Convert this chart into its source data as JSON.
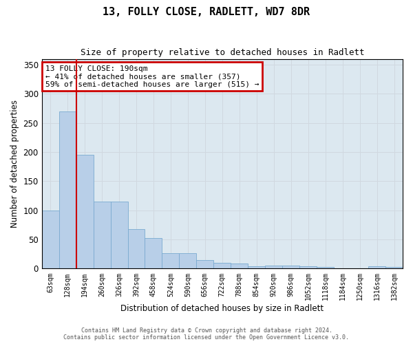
{
  "title": "13, FOLLY CLOSE, RADLETT, WD7 8DR",
  "subtitle": "Size of property relative to detached houses in Radlett",
  "xlabel": "Distribution of detached houses by size in Radlett",
  "ylabel": "Number of detached properties",
  "footer_line1": "Contains HM Land Registry data © Crown copyright and database right 2024.",
  "footer_line2": "Contains public sector information licensed under the Open Government Licence v3.0.",
  "categories": [
    "63sqm",
    "128sqm",
    "194sqm",
    "260sqm",
    "326sqm",
    "392sqm",
    "458sqm",
    "524sqm",
    "590sqm",
    "656sqm",
    "722sqm",
    "788sqm",
    "854sqm",
    "920sqm",
    "986sqm",
    "1052sqm",
    "1118sqm",
    "1184sqm",
    "1250sqm",
    "1316sqm",
    "1382sqm"
  ],
  "values": [
    100,
    270,
    195,
    115,
    115,
    68,
    53,
    27,
    27,
    15,
    10,
    9,
    4,
    5,
    5,
    4,
    3,
    1,
    0,
    4,
    3
  ],
  "bar_color": "#b8cfe8",
  "bar_edge_color": "#7aaad0",
  "vline_color": "#cc0000",
  "annotation_title": "13 FOLLY CLOSE: 190sqm",
  "annotation_line1": "← 41% of detached houses are smaller (357)",
  "annotation_line2": "59% of semi-detached houses are larger (515) →",
  "annotation_box_color": "#cc0000",
  "ylim": [
    0,
    360
  ],
  "yticks": [
    0,
    50,
    100,
    150,
    200,
    250,
    300,
    350
  ],
  "grid_color": "#d0d8e0",
  "bg_color": "#dce8f0"
}
